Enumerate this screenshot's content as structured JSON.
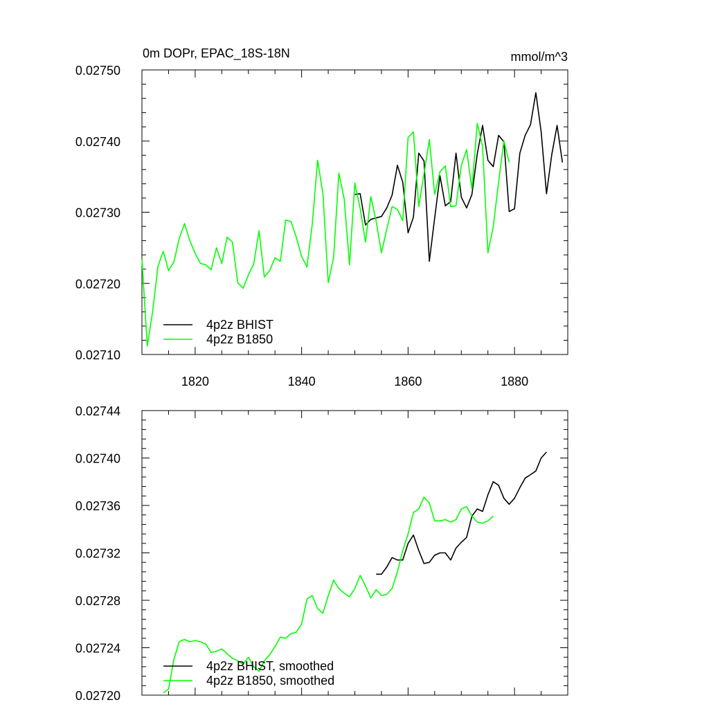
{
  "chart_data": [
    {
      "type": "line",
      "title": "0m DOPr, EPAC_18S-18N",
      "units": "mmol/m^3",
      "xlim": [
        1810,
        1890
      ],
      "ylim": [
        0.0271,
        0.0275
      ],
      "xticks": [
        1820,
        1840,
        1860,
        1880
      ],
      "xtick_labels": [
        "1820",
        "1840",
        "1860",
        "1880"
      ],
      "yticks": [
        0.0271,
        0.0272,
        0.0273,
        0.0274,
        0.0275
      ],
      "ytick_labels": [
        "0.02710",
        "0.02720",
        "0.02730",
        "0.02740",
        "0.02750"
      ],
      "legend_position": "bottom-left",
      "series": [
        {
          "name": "4p2z BHIST",
          "color": "#000000",
          "x": [
            1850,
            1851,
            1852,
            1853,
            1854,
            1855,
            1856,
            1857,
            1858,
            1859,
            1860,
            1861,
            1862,
            1863,
            1864,
            1865,
            1866,
            1867,
            1868,
            1869,
            1870,
            1871,
            1872,
            1873,
            1874,
            1875,
            1876,
            1877,
            1878,
            1879,
            1880,
            1881,
            1882,
            1883,
            1884,
            1885,
            1886,
            1887,
            1888,
            1889
          ],
          "y": [
            0.027325,
            0.027326,
            0.027282,
            0.02729,
            0.027292,
            0.027294,
            0.027306,
            0.027324,
            0.027366,
            0.027342,
            0.027271,
            0.027293,
            0.027383,
            0.027372,
            0.027231,
            0.027292,
            0.027351,
            0.027309,
            0.027315,
            0.027383,
            0.027321,
            0.027306,
            0.027325,
            0.027382,
            0.027422,
            0.027373,
            0.027364,
            0.027408,
            0.027399,
            0.027301,
            0.027305,
            0.027383,
            0.027408,
            0.027423,
            0.027468,
            0.027413,
            0.027326,
            0.027381,
            0.027422,
            0.02737
          ]
        },
        {
          "name": "4p2z B1850",
          "color": "#00ff00",
          "x": [
            1810,
            1811,
            1812,
            1813,
            1814,
            1815,
            1816,
            1817,
            1818,
            1819,
            1820,
            1821,
            1822,
            1823,
            1824,
            1825,
            1826,
            1827,
            1828,
            1829,
            1830,
            1831,
            1832,
            1833,
            1834,
            1835,
            1836,
            1837,
            1838,
            1839,
            1840,
            1841,
            1842,
            1843,
            1844,
            1845,
            1846,
            1847,
            1848,
            1849,
            1850,
            1851,
            1852,
            1853,
            1854,
            1855,
            1856,
            1857,
            1858,
            1859,
            1860,
            1861,
            1862,
            1863,
            1864,
            1865,
            1866,
            1867,
            1868,
            1869,
            1870,
            1871,
            1872,
            1873,
            1874,
            1875,
            1876,
            1877,
            1878,
            1879
          ],
          "y": [
            0.027234,
            0.027112,
            0.02716,
            0.027224,
            0.027245,
            0.027218,
            0.02723,
            0.027263,
            0.027284,
            0.02726,
            0.027242,
            0.027228,
            0.027226,
            0.027219,
            0.02725,
            0.027228,
            0.027265,
            0.027258,
            0.027201,
            0.027193,
            0.027212,
            0.027227,
            0.027274,
            0.027209,
            0.027218,
            0.027236,
            0.027231,
            0.027289,
            0.027287,
            0.027265,
            0.027238,
            0.027223,
            0.027283,
            0.027373,
            0.027326,
            0.027201,
            0.027236,
            0.027355,
            0.027319,
            0.027226,
            0.027341,
            0.027305,
            0.027258,
            0.027322,
            0.027287,
            0.027243,
            0.027276,
            0.027308,
            0.027304,
            0.027288,
            0.027405,
            0.027413,
            0.027308,
            0.027354,
            0.027402,
            0.027325,
            0.027357,
            0.027365,
            0.027308,
            0.027309,
            0.027366,
            0.027388,
            0.027333,
            0.027425,
            0.027392,
            0.027243,
            0.02728,
            0.027342,
            0.0274,
            0.02737
          ]
        }
      ]
    },
    {
      "type": "line",
      "xlim": [
        1810,
        1890
      ],
      "ylim": [
        0.0272,
        0.02744
      ],
      "xticks": [
        1820,
        1840,
        1860,
        1880
      ],
      "yticks": [
        0.0272,
        0.02724,
        0.02728,
        0.02732,
        0.02736,
        0.0274,
        0.02744
      ],
      "ytick_labels": [
        "0.02720",
        "0.02724",
        "0.02728",
        "0.02732",
        "0.02736",
        "0.02740",
        "0.02744"
      ],
      "legend_position": "bottom-left",
      "series": [
        {
          "name": "4p2z BHIST, smoothed",
          "color": "#000000",
          "x": [
            1854,
            1855,
            1856,
            1857,
            1858,
            1859,
            1860,
            1861,
            1862,
            1863,
            1864,
            1865,
            1866,
            1867,
            1868,
            1869,
            1870,
            1871,
            1872,
            1873,
            1874,
            1875,
            1876,
            1877,
            1878,
            1879,
            1880,
            1881,
            1882,
            1883,
            1884,
            1885,
            1886
          ],
          "y": [
            0.027302,
            0.027302,
            0.027308,
            0.027316,
            0.027314,
            0.027314,
            0.027328,
            0.027335,
            0.027322,
            0.027311,
            0.027312,
            0.027318,
            0.02732,
            0.02732,
            0.027314,
            0.027324,
            0.027329,
            0.027333,
            0.027351,
            0.027357,
            0.027355,
            0.027369,
            0.02738,
            0.027377,
            0.027366,
            0.027361,
            0.027366,
            0.027375,
            0.027383,
            0.027386,
            0.027389,
            0.0274,
            0.027405
          ]
        },
        {
          "name": "4p2z B1850, smoothed",
          "color": "#00ff00",
          "x": [
            1814,
            1815,
            1816,
            1817,
            1818,
            1819,
            1820,
            1821,
            1822,
            1823,
            1824,
            1825,
            1826,
            1827,
            1828,
            1829,
            1830,
            1831,
            1832,
            1833,
            1834,
            1835,
            1836,
            1837,
            1838,
            1839,
            1840,
            1841,
            1842,
            1843,
            1844,
            1845,
            1846,
            1847,
            1848,
            1849,
            1850,
            1851,
            1852,
            1853,
            1854,
            1855,
            1856,
            1857,
            1858,
            1859,
            1860,
            1861,
            1862,
            1863,
            1864,
            1865,
            1866,
            1867,
            1868,
            1869,
            1870,
            1871,
            1872,
            1873,
            1874,
            1875,
            1876
          ],
          "y": [
            0.027202,
            0.027205,
            0.02723,
            0.027245,
            0.027247,
            0.027245,
            0.027246,
            0.027245,
            0.027243,
            0.027236,
            0.027237,
            0.027239,
            0.027235,
            0.027231,
            0.027229,
            0.027226,
            0.027232,
            0.027224,
            0.02722,
            0.027229,
            0.027234,
            0.027241,
            0.027249,
            0.027248,
            0.027252,
            0.027253,
            0.02726,
            0.027281,
            0.027284,
            0.027273,
            0.027269,
            0.027284,
            0.027297,
            0.02729,
            0.027286,
            0.027283,
            0.02729,
            0.027301,
            0.027292,
            0.027282,
            0.027289,
            0.027284,
            0.027285,
            0.02729,
            0.027304,
            0.027322,
            0.027336,
            0.027354,
            0.027357,
            0.027367,
            0.027362,
            0.027347,
            0.027347,
            0.027348,
            0.027346,
            0.027348,
            0.027357,
            0.027359,
            0.027351,
            0.027346,
            0.027345,
            0.027347,
            0.027351
          ]
        }
      ]
    }
  ]
}
